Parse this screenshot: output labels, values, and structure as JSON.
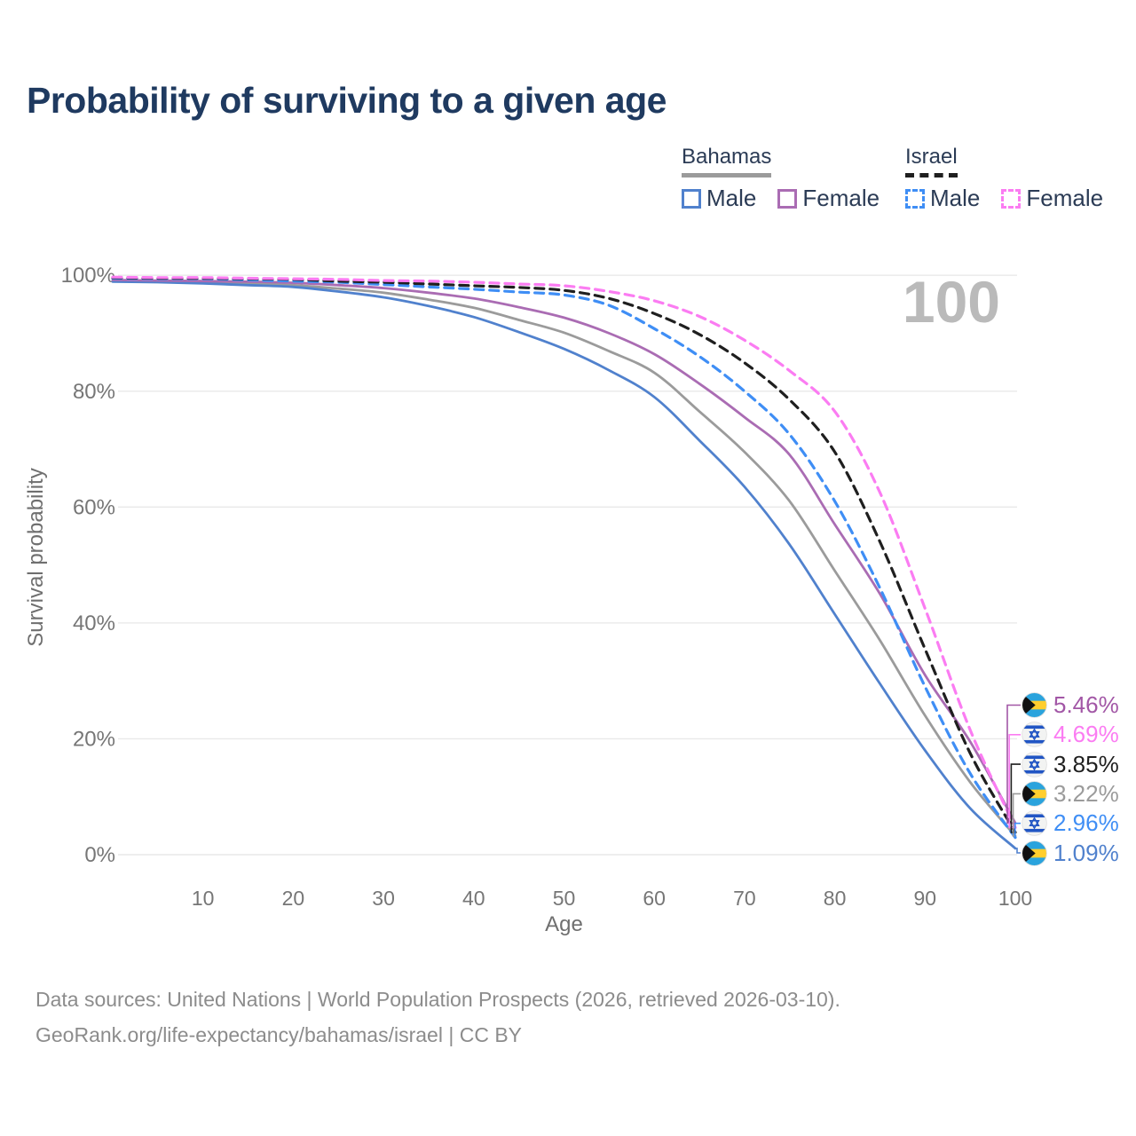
{
  "title": "Probability of surviving to a given age",
  "watermark_age": "100",
  "legend": {
    "groups": [
      {
        "id": "bahamas",
        "label": "Bahamas",
        "line_style": "solid",
        "line_color": "#9b9b9b",
        "items": [
          {
            "label": "Male",
            "color": "#5081cd",
            "style": "solid"
          },
          {
            "label": "Female",
            "color": "#aa6cb3",
            "style": "solid"
          }
        ]
      },
      {
        "id": "israel",
        "label": "Israel",
        "line_style": "dashed",
        "line_color": "#1f1f1f",
        "items": [
          {
            "label": "Male",
            "color": "#3f8ef5",
            "style": "dashed"
          },
          {
            "label": "Female",
            "color": "#fb7cf2",
            "style": "dashed"
          }
        ]
      }
    ]
  },
  "chart_data": {
    "type": "line",
    "title": "Probability of surviving to a given age",
    "xlabel": "Age",
    "ylabel": "Survival probability",
    "xlim": [
      0,
      100
    ],
    "ylim": [
      0,
      100
    ],
    "xticks": [
      10,
      20,
      30,
      40,
      50,
      60,
      70,
      80,
      90,
      100
    ],
    "yticks": [
      0,
      20,
      40,
      60,
      80,
      100
    ],
    "ytick_suffix": "%",
    "grid": true,
    "legend_position": "top-right",
    "x": [
      0,
      5,
      10,
      15,
      20,
      25,
      30,
      35,
      40,
      45,
      50,
      55,
      60,
      65,
      70,
      75,
      80,
      85,
      90,
      95,
      100
    ],
    "series": [
      {
        "id": "bahamas_total",
        "name": "Bahamas — Total",
        "color": "#9b9b9b",
        "dash": null,
        "width": 2.8,
        "values": [
          99.0,
          98.9,
          98.8,
          98.6,
          98.3,
          97.7,
          97.0,
          95.8,
          94.4,
          92.3,
          90.1,
          86.9,
          83.2,
          76.5,
          69.5,
          61.0,
          49.0,
          37.0,
          24.0,
          12.5,
          3.22
        ],
        "end_value_label": "3.22%"
      },
      {
        "id": "bahamas_male",
        "name": "Bahamas — Male",
        "color": "#5081cd",
        "dash": null,
        "width": 2.8,
        "values": [
          98.9,
          98.8,
          98.6,
          98.3,
          98.0,
          97.2,
          96.2,
          94.7,
          92.8,
          90.2,
          87.3,
          83.6,
          79.0,
          71.5,
          63.5,
          53.5,
          41.5,
          29.5,
          18.0,
          8.0,
          1.09
        ],
        "end_value_label": "1.09%"
      },
      {
        "id": "bahamas_female",
        "name": "Bahamas — Female",
        "color": "#aa6cb3",
        "dash": null,
        "width": 2.8,
        "values": [
          99.2,
          99.1,
          99.0,
          98.9,
          98.7,
          98.3,
          97.8,
          97.0,
          96.0,
          94.5,
          92.7,
          90.0,
          86.4,
          81.3,
          75.5,
          69.0,
          57.0,
          45.0,
          31.0,
          19.5,
          5.46
        ],
        "end_value_label": "5.46%"
      },
      {
        "id": "israel_male",
        "name": "Israel — Male",
        "color": "#3f8ef5",
        "dash": "10 7",
        "width": 3.2,
        "values": [
          99.5,
          99.4,
          99.4,
          99.2,
          99.0,
          98.8,
          98.4,
          98.0,
          97.6,
          97.1,
          96.6,
          94.8,
          90.8,
          86.0,
          80.0,
          72.5,
          61.0,
          46.0,
          29.0,
          14.0,
          2.96
        ],
        "end_value_label": "2.96%"
      },
      {
        "id": "israel_total",
        "name": "Israel — Total",
        "color": "#1f1f1f",
        "dash": "10 7",
        "width": 3.2,
        "values": [
          99.6,
          99.5,
          99.5,
          99.4,
          99.3,
          99.0,
          98.8,
          98.5,
          98.2,
          97.9,
          97.4,
          96.0,
          93.4,
          89.8,
          84.9,
          78.5,
          69.5,
          54.0,
          35.5,
          17.5,
          3.85
        ],
        "end_value_label": "3.85%"
      },
      {
        "id": "israel_female",
        "name": "Israel — Female",
        "color": "#fb7cf2",
        "dash": "10 7",
        "width": 3.2,
        "values": [
          99.7,
          99.6,
          99.6,
          99.5,
          99.4,
          99.3,
          99.1,
          99.0,
          98.8,
          98.5,
          98.2,
          97.2,
          95.6,
          92.9,
          88.8,
          83.5,
          76.5,
          62.5,
          42.5,
          21.5,
          4.69
        ],
        "end_value_label": "4.69%"
      }
    ]
  },
  "end_labels": [
    {
      "series": "bahamas_female",
      "flag": "bahamas",
      "text": "5.46%",
      "color": "#a257a6"
    },
    {
      "series": "israel_female",
      "flag": "israel",
      "text": "4.69%",
      "color": "#fb7cf2"
    },
    {
      "series": "israel_total",
      "flag": "israel",
      "text": "3.85%",
      "color": "#1f1f1f"
    },
    {
      "series": "bahamas_total",
      "flag": "bahamas",
      "text": "3.22%",
      "color": "#9b9b9b"
    },
    {
      "series": "israel_male",
      "flag": "israel",
      "text": "2.96%",
      "color": "#3f8ef5"
    },
    {
      "series": "bahamas_male",
      "flag": "bahamas",
      "text": "1.09%",
      "color": "#5081cd"
    }
  ],
  "footer": {
    "line1": "Data sources: United Nations | World Population Prospects (2026, retrieved 2026-03-10).",
    "line2": "GeoRank.org/life-expectancy/bahamas/israel | CC BY"
  }
}
